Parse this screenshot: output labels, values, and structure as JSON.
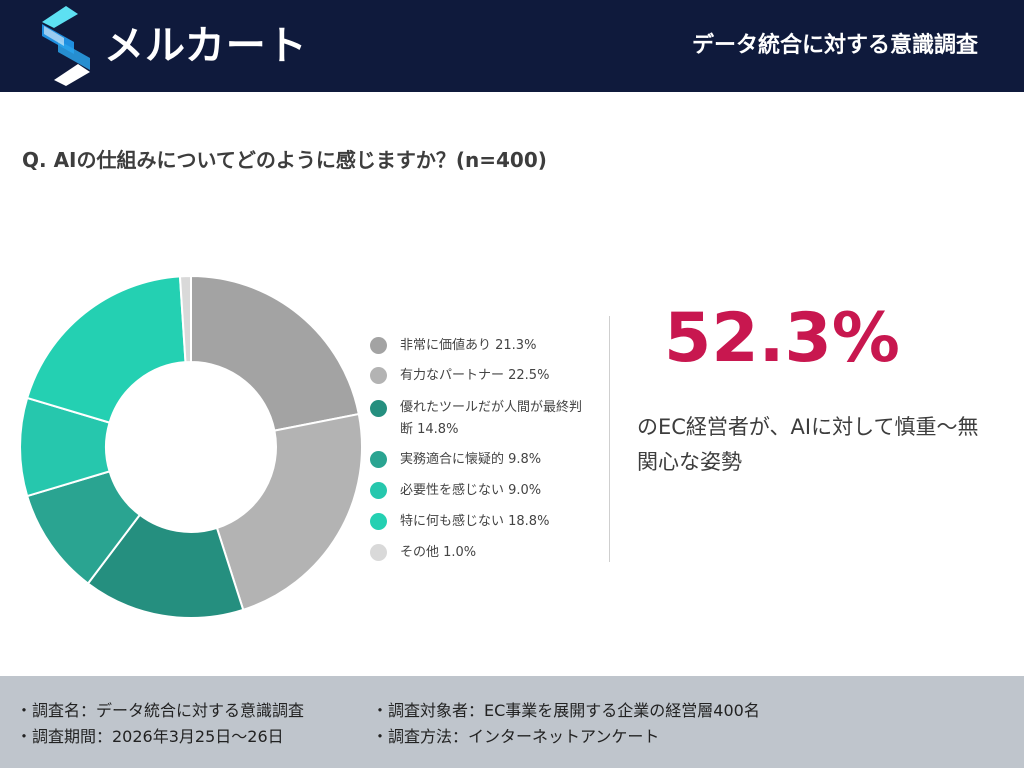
{
  "header": {
    "brand": "メルカート",
    "title": "データ統合に対する意識調査",
    "background": "#0f1a3c"
  },
  "question": "Q. AIの仕組みについてどのように感じますか？(n=400)",
  "chart_data": {
    "type": "pie",
    "style": "donut",
    "categories": [
      "非常に価値あり",
      "有力なパートナー",
      "優れたツールだが人間が最終判断",
      "実務適合に懐疑的",
      "必要性を感じない",
      "特に何も感じない",
      "その他"
    ],
    "values": [
      21.3,
      22.5,
      14.8,
      9.8,
      9.0,
      18.8,
      1.0
    ],
    "colors": [
      "#a3a3a3",
      "#b3b3b3",
      "#258f7f",
      "#2aa491",
      "#26c7ad",
      "#24d0b2",
      "#d9d9d9"
    ],
    "title": "",
    "legend": "right"
  },
  "legend_labels": [
    "非常に価値あり 21.3%",
    "有力なパートナー 22.5%",
    "優れたツールだが人間が最終判断 14.8%",
    "実務適合に懐疑的 9.8%",
    "必要性を感じない 9.0%",
    "特に何も感じない 18.8%",
    "その他 1.0%"
  ],
  "highlight": {
    "value": "52.3%",
    "description": "のEC経営者が、AIに対して慎重〜無関心な姿勢",
    "color": "#c8174f"
  },
  "footer": {
    "survey_name": "・調査名：データ統合に対する意識調査",
    "survey_target": "・調査対象者：EC事業を展開する企業の経営層400名",
    "survey_period": "・調査期間：2026年3月25日〜26日",
    "survey_method": "・調査方法：インターネットアンケート"
  }
}
